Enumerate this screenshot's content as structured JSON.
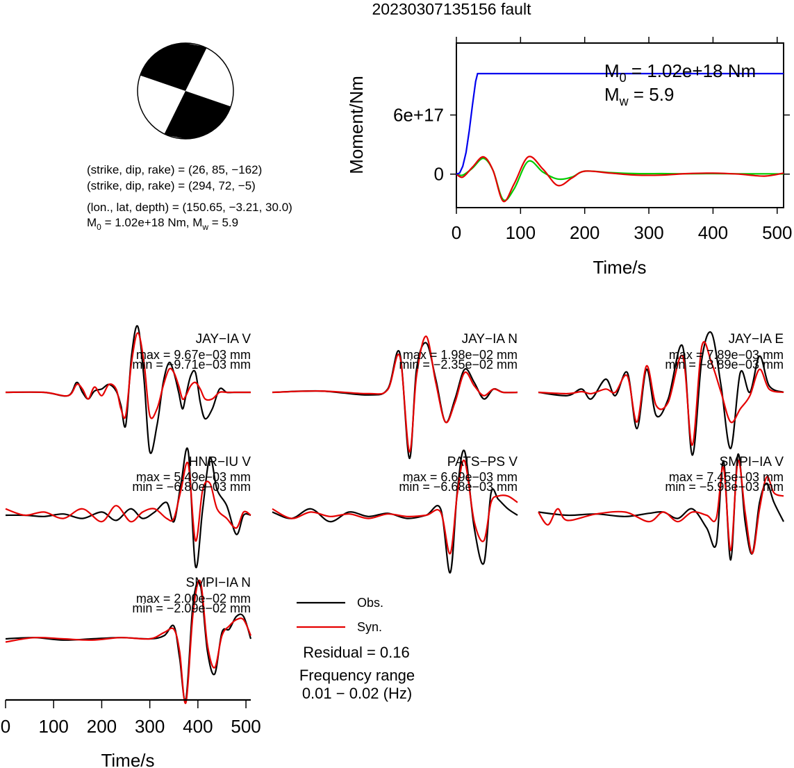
{
  "title": "20230307135156 fault",
  "beachball": {
    "planes": [
      {
        "label": "(strike, dip, rake) = ",
        "values": "(26, 85, −162)"
      },
      {
        "label": "(strike, dip, rake) = ",
        "values": "(294, 72, −5)"
      }
    ],
    "location": "(lon., lat, depth) = (150.65, −3.21, 30.0)",
    "moment_line": {
      "m0_sym": "M",
      "m0_sub": "0",
      "m0_val": " = 1.02e+18 Nm, ",
      "mw_sym": "M",
      "mw_sub": "w",
      "mw_val": " = 5.9"
    }
  },
  "moment_box": {
    "m0": {
      "sym": "M",
      "sub": "0",
      "val": " = 1.02e+18 Nm"
    },
    "mw": {
      "sym": "M",
      "sub": "w",
      "val": " = 5.9"
    }
  },
  "colors": {
    "observed": "#000000",
    "synthetic": "#e50000",
    "moment_rate": "#00cc00",
    "cumulative_moment": "#0000ee"
  },
  "chart_data": [
    {
      "type": "line",
      "name": "moment",
      "xlabel": "Time/s",
      "ylabel": "Moment/Nm",
      "xlim": [
        0,
        510
      ],
      "ylim": [
        -3.4e+17,
        1.33e+18
      ],
      "xticks": [
        0,
        100,
        200,
        300,
        400,
        500
      ],
      "yticks": [
        {
          "value": 0,
          "label": "0"
        },
        {
          "value": 6e+17,
          "label": "6e+17"
        }
      ],
      "series": [
        {
          "role": "cumulative_moment",
          "color": "#0000ee",
          "x": [
            0,
            5,
            10,
            15,
            20,
            25,
            30,
            33,
            510
          ],
          "y": [
            0,
            1e+16,
            8e+16,
            2.2e+17,
            4.4e+17,
            7e+17,
            9.4e+17,
            1.02e+18,
            1.02e+18
          ]
        },
        {
          "role": "moment_rate",
          "color": "#00cc00",
          "x": [
            0,
            10,
            25,
            42,
            57,
            73,
            90,
            112,
            135,
            158,
            180,
            200,
            240,
            280,
            320,
            360,
            400,
            440,
            480,
            510
          ],
          "y": [
            0,
            -1e+16,
            6e+16,
            1.6e+17,
            4e+16,
            -2.6e+17,
            -1.5e+17,
            1.3e+17,
            2e+16,
            -5e+16,
            -3e+16,
            3e+16,
            1.5e+16,
            5000000000000000.0,
            5000000000000000.0,
            3000000000000000.0,
            5000000000000000.0,
            3000000000000000.0,
            3000000000000000.0,
            2000000000000000.0
          ]
        },
        {
          "role": "moment_rate_synthetic",
          "color": "#e50000",
          "x": [
            0,
            10,
            25,
            42,
            57,
            73,
            90,
            112,
            135,
            158,
            180,
            200,
            240,
            280,
            320,
            360,
            400,
            440,
            480,
            510
          ],
          "y": [
            0,
            -3e+16,
            7e+16,
            1.75e+17,
            4e+16,
            -2.75e+17,
            -1e+17,
            1.75e+17,
            5e+16,
            -1.15e+17,
            -4e+16,
            3e+16,
            1e+16,
            -1e+16,
            -1e+16,
            5000000000000000.0,
            1e+16,
            0,
            -2e+16,
            1e+16
          ]
        }
      ]
    },
    {
      "type": "line",
      "name": "waveforms",
      "xlabel": "Time/s",
      "xlim": [
        0,
        510
      ],
      "xticks": [
        0,
        100,
        200,
        300,
        400,
        500
      ],
      "legend": {
        "observed": "Obs.",
        "synthetic": "Syn."
      },
      "residual": "Residual = 0.16",
      "frequency_label": "Frequency range",
      "frequency_range": "0.01 − 0.02 (Hz)",
      "stations": [
        {
          "label": "JAY−IA V",
          "max": "max = 9.67e−03 mm",
          "min": "min = −9.71e−03 mm",
          "obs": {
            "x": [
              0,
              80,
              130,
              148,
              160,
              172,
              185,
              200,
              215,
              230,
              240,
              250,
              262,
              275,
              288,
              300,
              315,
              328,
              340,
              350,
              360,
              368,
              375,
              385,
              395,
              405,
              415,
              430,
              445,
              460,
              475,
              490,
              510
            ],
            "y": [
              0,
              0,
              -0.05,
              0.15,
              0,
              -0.1,
              0.02,
              0.05,
              0.12,
              0.02,
              -0.2,
              -0.5,
              0.55,
              1.0,
              0.2,
              -0.9,
              -0.5,
              0.15,
              0.45,
              0.3,
              0.0,
              -0.25,
              -0.05,
              0.25,
              0.3,
              -0.15,
              -0.4,
              -0.25,
              0.05,
              0,
              0,
              0,
              0
            ]
          },
          "syn": {
            "x": [
              0,
              80,
              130,
              148,
              160,
              172,
              185,
              200,
              215,
              230,
              240,
              250,
              262,
              275,
              288,
              300,
              315,
              328,
              340,
              350,
              360,
              368,
              375,
              385,
              395,
              405,
              415,
              430,
              445,
              460,
              475,
              490,
              510
            ],
            "y": [
              0,
              0,
              -0.05,
              0.12,
              0.05,
              -0.1,
              0.08,
              -0.05,
              0.12,
              0.05,
              -0.25,
              -0.35,
              0.45,
              0.9,
              0.45,
              -0.35,
              -0.25,
              0.1,
              0.35,
              0.3,
              0.1,
              -0.1,
              -0.05,
              0.1,
              0.15,
              0.05,
              -0.1,
              -0.1,
              0,
              0,
              0,
              0,
              0
            ]
          }
        },
        {
          "label": "JAY−IA N",
          "max": "max = 1.98e−02 mm",
          "min": "min = −2.35e−02 mm",
          "obs": {
            "x": [
              0,
              100,
              200,
              240,
              265,
              285,
              300,
              320,
              340,
              360,
              380,
              400,
              420,
              440,
              460,
              480,
              510
            ],
            "y": [
              0,
              0.02,
              -0.04,
              0.05,
              0.6,
              -1.0,
              0.35,
              0.75,
              0.2,
              -0.45,
              -0.1,
              0.35,
              0.15,
              -0.1,
              0.05,
              0,
              0
            ]
          },
          "syn": {
            "x": [
              0,
              100,
              200,
              240,
              265,
              285,
              300,
              320,
              340,
              360,
              380,
              400,
              420,
              440,
              460,
              480,
              510
            ],
            "y": [
              0,
              0.02,
              -0.02,
              0.04,
              0.55,
              -0.9,
              0.25,
              0.85,
              0.15,
              -0.45,
              -0.15,
              0.3,
              0.1,
              -0.05,
              0.05,
              0,
              0
            ]
          }
        },
        {
          "label": "JAY−IA E",
          "max": "max = 7.89e−03 mm",
          "min": "min = −8.89e−03 mm",
          "obs": {
            "x": [
              0,
              60,
              90,
              110,
              140,
              160,
              185,
              205,
              225,
              245,
              270,
              300,
              320,
              340,
              360,
              380,
              400,
              420,
              440,
              460,
              480,
              510
            ],
            "y": [
              0,
              -0.05,
              0.05,
              -0.1,
              0.2,
              -0.05,
              0.3,
              -0.55,
              0.35,
              -0.35,
              -0.1,
              0.7,
              -0.95,
              0.5,
              0.9,
              0.1,
              -0.85,
              0.3,
              0.0,
              0.55,
              0.1,
              0
            ]
          },
          "syn": {
            "x": [
              0,
              60,
              90,
              110,
              140,
              160,
              185,
              205,
              225,
              245,
              270,
              300,
              320,
              340,
              360,
              380,
              400,
              420,
              440,
              460,
              480,
              510
            ],
            "y": [
              0,
              -0.02,
              0.01,
              -0.02,
              0.05,
              0.0,
              0.25,
              -0.45,
              0.4,
              -0.2,
              -0.15,
              0.55,
              -0.8,
              0.7,
              0.45,
              0.0,
              -0.45,
              -0.25,
              -0.05,
              0.35,
              0.05,
              0
            ]
          }
        },
        {
          "label": "HNR−IU V",
          "max": "max = 5.49e−03 mm",
          "min": "min = −6.80e−03 mm",
          "obs": {
            "x": [
              0,
              40,
              80,
              120,
              160,
              200,
              230,
              260,
              285,
              310,
              335,
              350,
              365,
              380,
              395,
              410,
              425,
              440,
              460,
              480,
              495,
              510
            ],
            "y": [
              0,
              0,
              -0.02,
              0.02,
              -0.05,
              0.05,
              -0.08,
              0.1,
              -0.05,
              0.05,
              0.2,
              -0.1,
              0.5,
              1.0,
              -0.8,
              0.1,
              0.9,
              0.4,
              0.15,
              -0.3,
              0.0,
              0
            ]
          },
          "syn": {
            "x": [
              0,
              40,
              80,
              120,
              160,
              200,
              230,
              260,
              285,
              310,
              335,
              350,
              365,
              380,
              395,
              410,
              425,
              440,
              460,
              480,
              495,
              510
            ],
            "y": [
              0.1,
              0.0,
              0.05,
              -0.05,
              0.1,
              -0.1,
              0.15,
              -0.1,
              0.05,
              0.1,
              -0.05,
              -0.05,
              0.4,
              0.8,
              -0.4,
              0.4,
              0.5,
              0.1,
              -0.05,
              -0.2,
              0.05,
              0
            ]
          }
        },
        {
          "label": "PATS−PS V",
          "max": "max = 6.69e−03 mm",
          "min": "min = −6.68e−03 mm",
          "obs": {
            "x": [
              0,
              40,
              80,
              120,
              160,
              200,
              240,
              280,
              320,
              350,
              370,
              385,
              400,
              420,
              440,
              455,
              470,
              490,
              510
            ],
            "y": [
              0.05,
              -0.05,
              0.1,
              -0.1,
              0.05,
              -0.02,
              0.03,
              -0.05,
              0.0,
              0.1,
              -0.9,
              0.4,
              1.0,
              -0.2,
              -0.75,
              0.35,
              0.25,
              0.1,
              0
            ]
          },
          "syn": {
            "x": [
              0,
              40,
              80,
              120,
              160,
              200,
              240,
              280,
              320,
              350,
              370,
              385,
              400,
              420,
              440,
              455,
              470,
              490,
              510
            ],
            "y": [
              0.1,
              -0.05,
              0.05,
              -0.02,
              0.02,
              -0.05,
              0.02,
              -0.02,
              0.0,
              0.05,
              -0.6,
              0.35,
              0.85,
              -0.1,
              -0.4,
              0.2,
              0.3,
              0.3,
              0.2
            ]
          }
        },
        {
          "label": "SMPI−IA V",
          "max": "max = 7.45e−03 mm",
          "min": "min = −5.93e−03 mm",
          "obs": {
            "x": [
              0,
              60,
              120,
              180,
              230,
              260,
              290,
              320,
              350,
              370,
              385,
              400,
              415,
              430,
              445,
              460,
              475,
              490,
              510
            ],
            "y": [
              0.05,
              0.0,
              0.02,
              -0.02,
              0.03,
              0.05,
              -0.05,
              0.1,
              -0.2,
              -0.45,
              0.85,
              -0.7,
              0.95,
              -0.1,
              -0.6,
              0.2,
              0.5,
              0.2,
              -0.1
            ]
          },
          "syn": {
            "x": [
              0,
              20,
              40,
              60,
              120,
              180,
              230,
              260,
              290,
              320,
              350,
              370,
              385,
              400,
              415,
              430,
              445,
              460,
              475,
              490,
              510
            ],
            "y": [
              0.05,
              -0.15,
              0.1,
              -0.08,
              0.02,
              0.05,
              -0.1,
              0.05,
              -0.1,
              0.05,
              0.0,
              -0.05,
              0.75,
              -0.55,
              0.85,
              0.05,
              -0.6,
              0.1,
              0.6,
              0.35,
              0.3
            ]
          }
        },
        {
          "label": "SMPI−IA N",
          "max": "max = 2.00e−02 mm",
          "min": "min = −2.09e−02 mm",
          "obs": {
            "x": [
              0,
              60,
              120,
              180,
              240,
              300,
              330,
              350,
              362,
              375,
              390,
              405,
              420,
              435,
              450,
              465,
              480,
              495,
              510
            ],
            "y": [
              0,
              0.02,
              -0.02,
              0.0,
              0.02,
              0.0,
              0.05,
              0.2,
              -0.3,
              -0.95,
              0.55,
              0.85,
              -0.2,
              -0.55,
              0.1,
              0.15,
              0.35,
              0.35,
              0
            ]
          },
          "syn": {
            "x": [
              0,
              60,
              120,
              180,
              240,
              300,
              330,
              350,
              362,
              375,
              390,
              405,
              420,
              435,
              450,
              465,
              480,
              495,
              510
            ],
            "y": [
              -0.05,
              0.02,
              0.0,
              -0.02,
              0.02,
              0.0,
              0.1,
              0.15,
              -0.2,
              -1.0,
              0.4,
              0.9,
              -0.1,
              -0.45,
              0.05,
              0.2,
              0.3,
              0.3,
              0.05
            ]
          }
        }
      ]
    }
  ]
}
